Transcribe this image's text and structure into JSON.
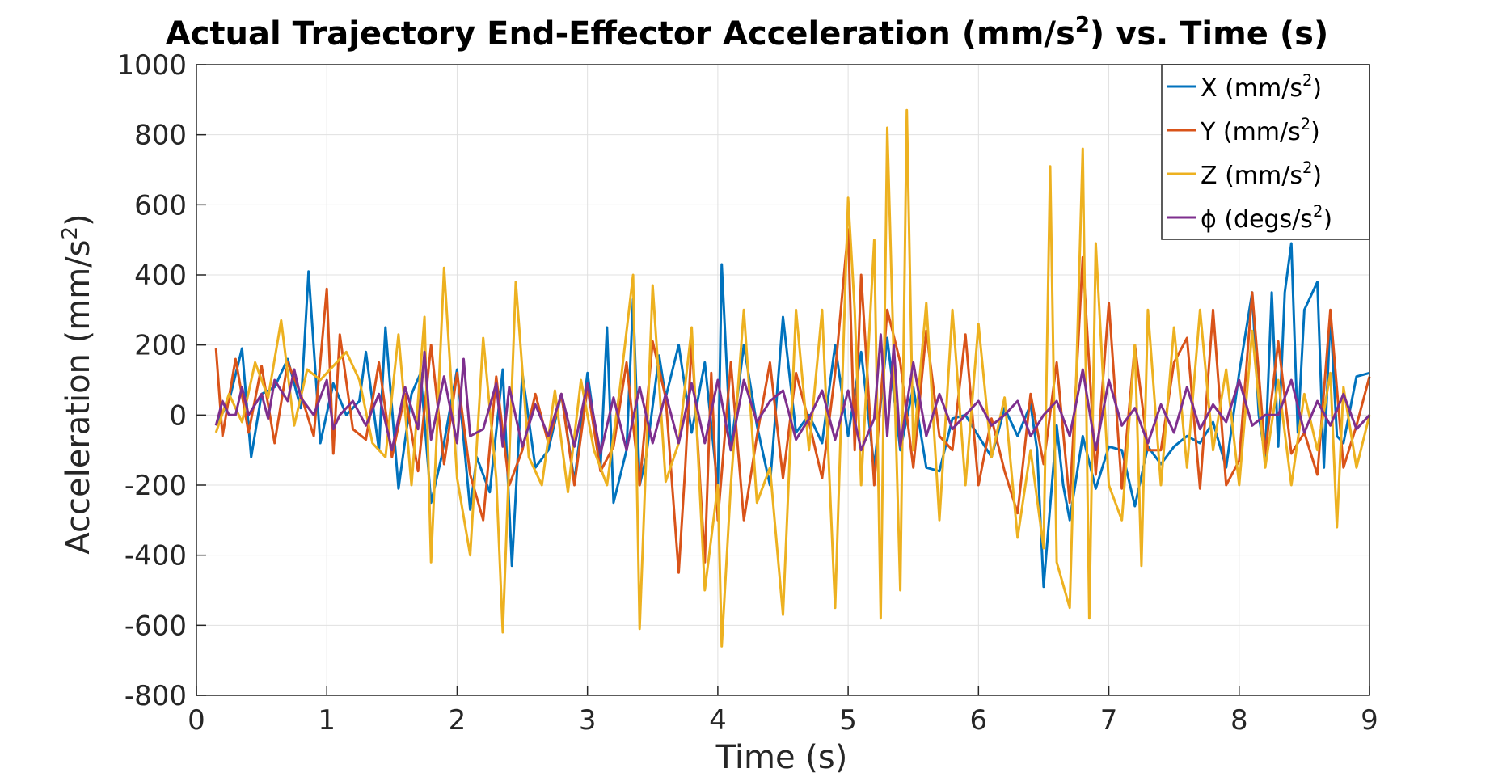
{
  "chart_data": {
    "type": "line",
    "title": "Actual Trajectory End-Effector Acceleration (mm/s²) vs. Time (s)",
    "title_parts": {
      "main": "Actual Trajectory End-Effector Acceleration (mm/s",
      "sup": "2",
      "tail": ") vs. Time (s)"
    },
    "xlabel": "Time (s)",
    "ylabel_parts": {
      "main": "Acceleration (mm/s",
      "sup": "2",
      "tail": ")"
    },
    "xlim": [
      0,
      9
    ],
    "ylim": [
      -800,
      1000
    ],
    "xticks": [
      0,
      1,
      2,
      3,
      4,
      5,
      6,
      7,
      8,
      9
    ],
    "yticks": [
      -800,
      -600,
      -400,
      -200,
      0,
      200,
      400,
      600,
      800,
      1000
    ],
    "grid": true,
    "legend_position": "top-right",
    "series": [
      {
        "name": "X (mm/s²)",
        "legend_parts": {
          "main": "X (mm/s",
          "sup": "2",
          "tail": ")"
        },
        "color": "#0072BD",
        "x": [
          0.15,
          0.25,
          0.35,
          0.42,
          0.5,
          0.6,
          0.7,
          0.8,
          0.86,
          0.95,
          1.05,
          1.15,
          1.25,
          1.3,
          1.4,
          1.45,
          1.55,
          1.65,
          1.72,
          1.8,
          1.88,
          2.0,
          2.1,
          2.15,
          2.25,
          2.35,
          2.42,
          2.5,
          2.6,
          2.7,
          2.8,
          2.9,
          3.0,
          3.1,
          3.15,
          3.2,
          3.3,
          3.35,
          3.4,
          3.45,
          3.55,
          3.6,
          3.7,
          3.8,
          3.9,
          4.0,
          4.03,
          4.1,
          4.2,
          4.3,
          4.4,
          4.5,
          4.6,
          4.7,
          4.8,
          4.9,
          5.0,
          5.1,
          5.2,
          5.3,
          5.4,
          5.5,
          5.6,
          5.7,
          5.8,
          5.9,
          6.0,
          6.1,
          6.2,
          6.3,
          6.4,
          6.45,
          6.5,
          6.6,
          6.65,
          6.7,
          6.8,
          6.9,
          7.0,
          7.1,
          7.2,
          7.3,
          7.4,
          7.5,
          7.6,
          7.7,
          7.8,
          7.9,
          8.0,
          8.1,
          8.15,
          8.2,
          8.25,
          8.3,
          8.35,
          8.4,
          8.45,
          8.5,
          8.6,
          8.65,
          8.7,
          8.75,
          8.8,
          8.9,
          9.0
        ],
        "y": [
          -30,
          40,
          190,
          -120,
          60,
          80,
          160,
          20,
          410,
          -80,
          90,
          0,
          40,
          180,
          -100,
          250,
          -210,
          60,
          120,
          -250,
          -120,
          130,
          -270,
          -120,
          -220,
          130,
          -430,
          120,
          -150,
          -100,
          60,
          -190,
          120,
          -150,
          250,
          -250,
          -100,
          330,
          -200,
          -120,
          170,
          50,
          200,
          -50,
          150,
          -210,
          430,
          -100,
          200,
          -30,
          -200,
          280,
          -50,
          0,
          -80,
          200,
          -60,
          180,
          -150,
          220,
          -100,
          80,
          -150,
          -160,
          -10,
          0,
          -60,
          -120,
          20,
          -60,
          30,
          -100,
          -490,
          -30,
          -200,
          -300,
          -60,
          -210,
          -90,
          -100,
          -260,
          -90,
          -140,
          -90,
          -60,
          -80,
          -20,
          -150,
          120,
          350,
          0,
          -120,
          350,
          -90,
          350,
          490,
          -50,
          300,
          380,
          -150,
          290,
          -60,
          -80,
          110,
          120
        ],
        "data_name": "series-x-line"
      },
      {
        "name": "Y (mm/s²)",
        "legend_parts": {
          "main": "Y (mm/s",
          "sup": "2",
          "tail": ")"
        },
        "color": "#D95319",
        "x": [
          0.15,
          0.2,
          0.3,
          0.4,
          0.5,
          0.6,
          0.7,
          0.8,
          0.9,
          1.0,
          1.05,
          1.1,
          1.2,
          1.3,
          1.4,
          1.5,
          1.6,
          1.7,
          1.8,
          1.9,
          2.0,
          2.1,
          2.2,
          2.3,
          2.4,
          2.5,
          2.6,
          2.7,
          2.8,
          2.9,
          3.0,
          3.1,
          3.2,
          3.3,
          3.4,
          3.5,
          3.6,
          3.7,
          3.75,
          3.8,
          3.9,
          3.95,
          4.0,
          4.1,
          4.2,
          4.3,
          4.4,
          4.5,
          4.6,
          4.7,
          4.8,
          4.9,
          5.0,
          5.05,
          5.1,
          5.2,
          5.3,
          5.4,
          5.5,
          5.6,
          5.7,
          5.8,
          5.9,
          6.0,
          6.1,
          6.2,
          6.3,
          6.4,
          6.5,
          6.6,
          6.7,
          6.8,
          6.9,
          7.0,
          7.1,
          7.2,
          7.3,
          7.4,
          7.5,
          7.6,
          7.7,
          7.8,
          7.9,
          8.0,
          8.1,
          8.2,
          8.3,
          8.4,
          8.5,
          8.6,
          8.7,
          8.8,
          8.9,
          9.0
        ],
        "y": [
          190,
          -60,
          160,
          -50,
          140,
          -80,
          150,
          60,
          -60,
          360,
          -110,
          230,
          -40,
          -70,
          150,
          -120,
          60,
          -160,
          200,
          -140,
          120,
          -170,
          -300,
          110,
          -200,
          -100,
          60,
          -80,
          60,
          -200,
          80,
          -160,
          -90,
          150,
          -200,
          210,
          50,
          -450,
          -150,
          210,
          -420,
          120,
          -300,
          150,
          -300,
          -60,
          150,
          -180,
          120,
          -20,
          -180,
          120,
          530,
          -100,
          400,
          -200,
          300,
          150,
          -150,
          240,
          -60,
          -100,
          230,
          -200,
          -10,
          -160,
          -280,
          60,
          -140,
          150,
          -250,
          450,
          -170,
          320,
          -210,
          200,
          -100,
          -100,
          150,
          220,
          -210,
          300,
          -200,
          -130,
          350,
          -110,
          210,
          -110,
          -50,
          -170,
          300,
          -150,
          -30,
          110
        ],
        "data_name": "series-y-line"
      },
      {
        "name": "Z (mm/s²)",
        "legend_parts": {
          "main": "Z (mm/s",
          "sup": "2",
          "tail": ")"
        },
        "color": "#EDB120",
        "x": [
          0.15,
          0.25,
          0.35,
          0.45,
          0.55,
          0.65,
          0.75,
          0.85,
          0.95,
          1.05,
          1.15,
          1.25,
          1.35,
          1.45,
          1.55,
          1.65,
          1.75,
          1.8,
          1.9,
          2.0,
          2.1,
          2.2,
          2.3,
          2.35,
          2.45,
          2.55,
          2.65,
          2.75,
          2.85,
          2.95,
          3.05,
          3.15,
          3.25,
          3.35,
          3.4,
          3.5,
          3.6,
          3.7,
          3.8,
          3.9,
          4.0,
          4.03,
          4.1,
          4.2,
          4.3,
          4.4,
          4.5,
          4.6,
          4.7,
          4.8,
          4.9,
          5.0,
          5.05,
          5.1,
          5.2,
          5.25,
          5.3,
          5.4,
          5.45,
          5.5,
          5.6,
          5.7,
          5.8,
          5.9,
          6.0,
          6.1,
          6.2,
          6.3,
          6.4,
          6.5,
          6.55,
          6.6,
          6.7,
          6.8,
          6.85,
          6.9,
          7.0,
          7.1,
          7.2,
          7.25,
          7.3,
          7.4,
          7.5,
          7.6,
          7.7,
          7.8,
          7.9,
          8.0,
          8.1,
          8.2,
          8.3,
          8.4,
          8.5,
          8.6,
          8.7,
          8.75,
          8.8,
          8.9,
          9.0
        ],
        "y": [
          -50,
          60,
          -20,
          150,
          50,
          270,
          -30,
          130,
          100,
          140,
          180,
          100,
          -80,
          -120,
          230,
          -200,
          280,
          -420,
          420,
          -180,
          -400,
          220,
          -180,
          -620,
          380,
          -120,
          -200,
          70,
          -220,
          100,
          -100,
          -200,
          80,
          400,
          -610,
          370,
          -190,
          -80,
          250,
          -500,
          -200,
          -660,
          -200,
          300,
          -250,
          -150,
          -570,
          300,
          -100,
          300,
          -550,
          620,
          300,
          -200,
          500,
          -580,
          820,
          -500,
          870,
          -100,
          320,
          -300,
          300,
          -200,
          260,
          -120,
          50,
          -350,
          -100,
          -380,
          710,
          -420,
          -550,
          760,
          -580,
          490,
          -200,
          -300,
          200,
          -430,
          300,
          -200,
          250,
          -150,
          300,
          -100,
          130,
          -200,
          240,
          -150,
          100,
          -200,
          60,
          -100,
          120,
          -320,
          80,
          -150,
          0
        ],
        "data_name": "series-z-line"
      },
      {
        "name": "ϕ (degs/s²)",
        "legend_parts": {
          "main": "ϕ (degs/s",
          "sup": "2",
          "tail": ")"
        },
        "color": "#7E2F8E",
        "x": [
          0.15,
          0.2,
          0.25,
          0.3,
          0.35,
          0.4,
          0.5,
          0.55,
          0.6,
          0.7,
          0.75,
          0.8,
          0.9,
          1.0,
          1.05,
          1.1,
          1.2,
          1.3,
          1.4,
          1.5,
          1.6,
          1.7,
          1.75,
          1.8,
          1.9,
          2.0,
          2.05,
          2.1,
          2.2,
          2.3,
          2.35,
          2.4,
          2.5,
          2.6,
          2.7,
          2.8,
          2.9,
          3.0,
          3.1,
          3.2,
          3.3,
          3.4,
          3.5,
          3.6,
          3.7,
          3.8,
          3.9,
          4.0,
          4.1,
          4.2,
          4.3,
          4.4,
          4.5,
          4.6,
          4.7,
          4.8,
          4.9,
          5.0,
          5.1,
          5.2,
          5.25,
          5.3,
          5.35,
          5.4,
          5.5,
          5.6,
          5.7,
          5.8,
          5.9,
          6.0,
          6.1,
          6.2,
          6.3,
          6.4,
          6.5,
          6.6,
          6.7,
          6.8,
          6.9,
          7.0,
          7.1,
          7.2,
          7.3,
          7.4,
          7.5,
          7.6,
          7.7,
          7.8,
          7.9,
          8.0,
          8.1,
          8.2,
          8.3,
          8.4,
          8.5,
          8.6,
          8.7,
          8.8,
          8.9,
          9.0
        ],
        "y": [
          -30,
          40,
          0,
          0,
          80,
          0,
          60,
          -10,
          100,
          40,
          130,
          50,
          0,
          100,
          -40,
          0,
          40,
          -30,
          60,
          -100,
          80,
          -40,
          180,
          -70,
          110,
          -80,
          160,
          -60,
          -40,
          90,
          -90,
          80,
          -90,
          30,
          -60,
          60,
          -90,
          90,
          -110,
          50,
          -100,
          80,
          -80,
          60,
          -80,
          90,
          -80,
          100,
          -100,
          100,
          -20,
          40,
          70,
          -70,
          -10,
          70,
          -70,
          70,
          -100,
          -10,
          230,
          -60,
          200,
          -90,
          150,
          -60,
          60,
          -40,
          0,
          40,
          -30,
          0,
          40,
          -60,
          0,
          40,
          -60,
          130,
          -100,
          100,
          -30,
          20,
          -80,
          30,
          -50,
          80,
          -40,
          30,
          -20,
          100,
          -30,
          0,
          0,
          100,
          -50,
          40,
          -30,
          60,
          -40,
          0
        ],
        "data_name": "series-phi-line"
      }
    ]
  }
}
